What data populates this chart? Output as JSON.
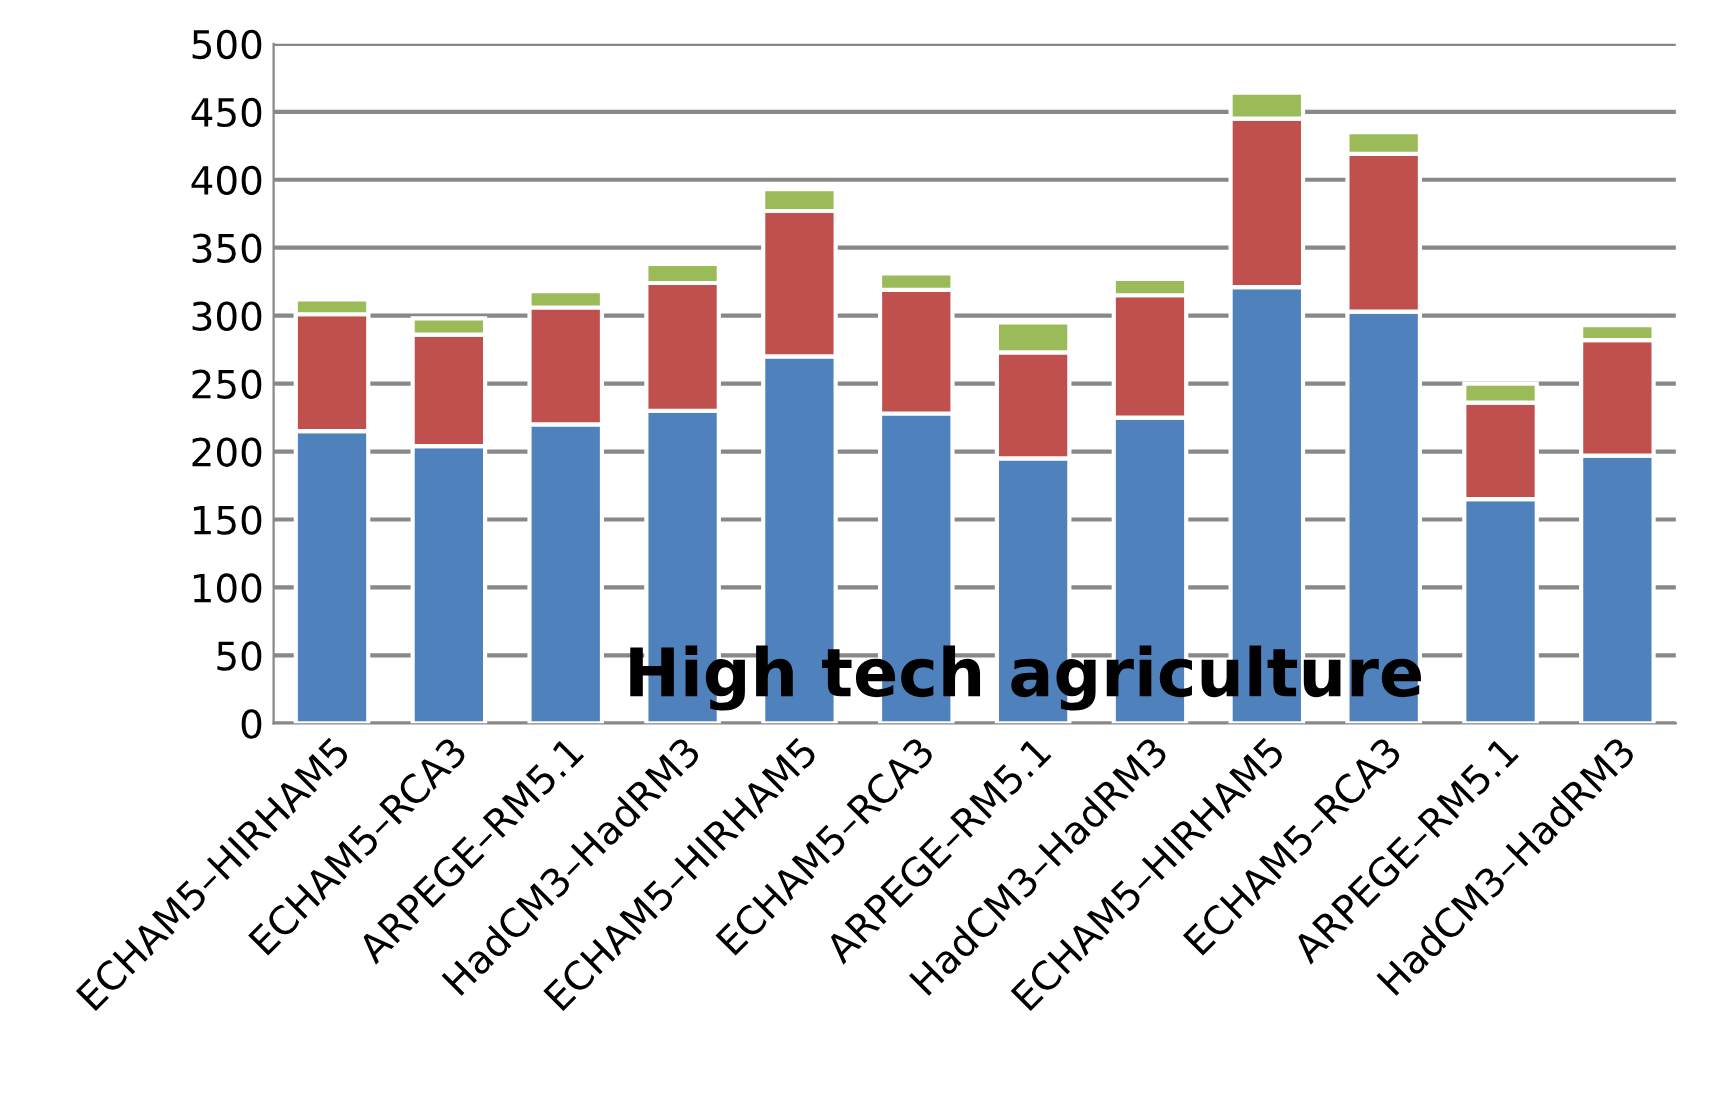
{
  "chart_data": {
    "type": "bar",
    "stacked": true,
    "categories": [
      "ECHAM5–HIRHAM5",
      "ECHAM5–RCA3",
      "ARPEGE–RM5.1",
      "HadCM3–HadRM3",
      "ECHAM5–HIRHAM5",
      "ECHAM5–RCA3",
      "ARPEGE–RM5.1",
      "HadCM3–HadRM3",
      "ECHAM5–HIRHAM5",
      "ECHAM5–RCA3",
      "ARPEGE–RM5.1",
      "HadCM3–HadRM3"
    ],
    "series": [
      {
        "color": "#4f81bd",
        "values": [
          215,
          204,
          220,
          230,
          270,
          228,
          195,
          225,
          321,
          303,
          165,
          197
        ]
      },
      {
        "color": "#c0504d",
        "values": [
          86,
          82,
          86,
          94,
          107,
          91,
          78,
          90,
          124,
          116,
          71,
          85
        ]
      },
      {
        "color": "#9bbb59",
        "values": [
          11,
          12,
          12,
          14,
          16,
          12,
          22,
          12,
          19,
          16,
          14,
          11
        ]
      }
    ],
    "ylim": [
      0,
      500
    ],
    "yticks": [
      0,
      50,
      100,
      150,
      200,
      250,
      300,
      350,
      400,
      450,
      500
    ],
    "grid": "y",
    "legend": false,
    "annotations": [
      "High tech agriculture"
    ]
  }
}
